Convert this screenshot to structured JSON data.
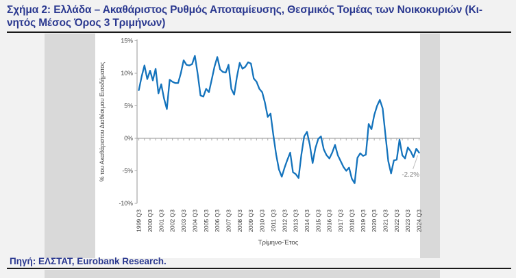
{
  "page": {
    "title_lines": [
      "Σχήμα 2: Ελλάδα – Ακαθάριστος Ρυθμός Αποταμίευσης, Θεσμικός Τομέας των Νοικοκυριών (Κι-",
      "νητός Μέσος Όρος 3 Τριμήνων)"
    ],
    "source": "Πηγή: ΕΛΣΤΑΤ, Eurobank Research."
  },
  "colors": {
    "page_bg": "#f2f2f2",
    "side_band": "#d9d9d9",
    "chart_bg": "#ffffff",
    "line": "#1473bc",
    "axis": "#a6a6a6",
    "tick_text": "#404040",
    "navy": "#2b3990",
    "rule": "#1a1a1a",
    "annotation": "#808080"
  },
  "chart_data": {
    "type": "line",
    "title": "",
    "xlabel": "Τρίμηνο-Έτος",
    "ylabel": "% του Ακαθάριστου Διαθέσιμου Εισοδήματος",
    "ylim": [
      -10,
      15
    ],
    "ytick_values": [
      15,
      10,
      5,
      0,
      -5,
      -10
    ],
    "ytick_labels": [
      "15%",
      "10%",
      "5%",
      "0%",
      "-5%",
      "-10%"
    ],
    "grid": false,
    "legend": "none",
    "zero_axis_line": true,
    "x_frequency": "quarterly",
    "x_start_label": "1999 Q3",
    "x_end_label": "2024 Q3",
    "x_tick_labels": [
      "1999 Q3",
      "2000 Q3",
      "2001 Q3",
      "2002 Q3",
      "2003 Q3",
      "2004 Q3",
      "2005 Q3",
      "2006 Q3",
      "2007 Q3",
      "2008 Q3",
      "2009 Q3",
      "2010 Q3",
      "2011 Q3",
      "2012 Q3",
      "2013 Q3",
      "2014 Q3",
      "2015 Q3",
      "2016 Q3",
      "2017 Q3",
      "2018 Q3",
      "2019 Q3",
      "2020 Q3",
      "2021 Q3",
      "2022 Q3",
      "2023 Q3",
      "2024 Q3"
    ],
    "values": [
      7.4,
      9.5,
      11.2,
      9.1,
      10.4,
      8.9,
      10.7,
      6.9,
      8.3,
      6.1,
      4.5,
      9.0,
      8.7,
      8.5,
      8.5,
      10.0,
      12.0,
      11.3,
      11.2,
      11.4,
      12.7,
      9.9,
      6.6,
      6.4,
      7.6,
      7.1,
      9.0,
      11.0,
      12.5,
      10.6,
      10.2,
      10.1,
      11.3,
      7.6,
      6.7,
      9.5,
      11.6,
      10.7,
      11.0,
      11.7,
      11.5,
      9.2,
      8.7,
      7.6,
      7.1,
      5.5,
      3.3,
      3.8,
      0.5,
      -2.5,
      -4.8,
      -5.9,
      -4.5,
      -3.3,
      -2.2,
      -5.2,
      -5.5,
      -6.1,
      -2.5,
      0.3,
      1.0,
      -1.0,
      -3.8,
      -1.5,
      -0.1,
      0.3,
      -1.7,
      -2.6,
      -3.1,
      -2.2,
      -1.0,
      -2.6,
      -3.5,
      -4.4,
      -5.0,
      -4.5,
      -6.2,
      -6.9,
      -3.0,
      -2.3,
      -2.7,
      -2.5,
      2.2,
      1.4,
      3.6,
      5.0,
      5.9,
      4.6,
      0.5,
      -3.5,
      -5.4,
      -3.4,
      -3.3,
      -0.2,
      -2.6,
      -3.1,
      -1.4,
      -2.0,
      -2.9,
      -1.6,
      -2.2
    ],
    "annotation": {
      "label": "-2.2%",
      "value": -2.2,
      "x": "2024 Q3"
    }
  }
}
